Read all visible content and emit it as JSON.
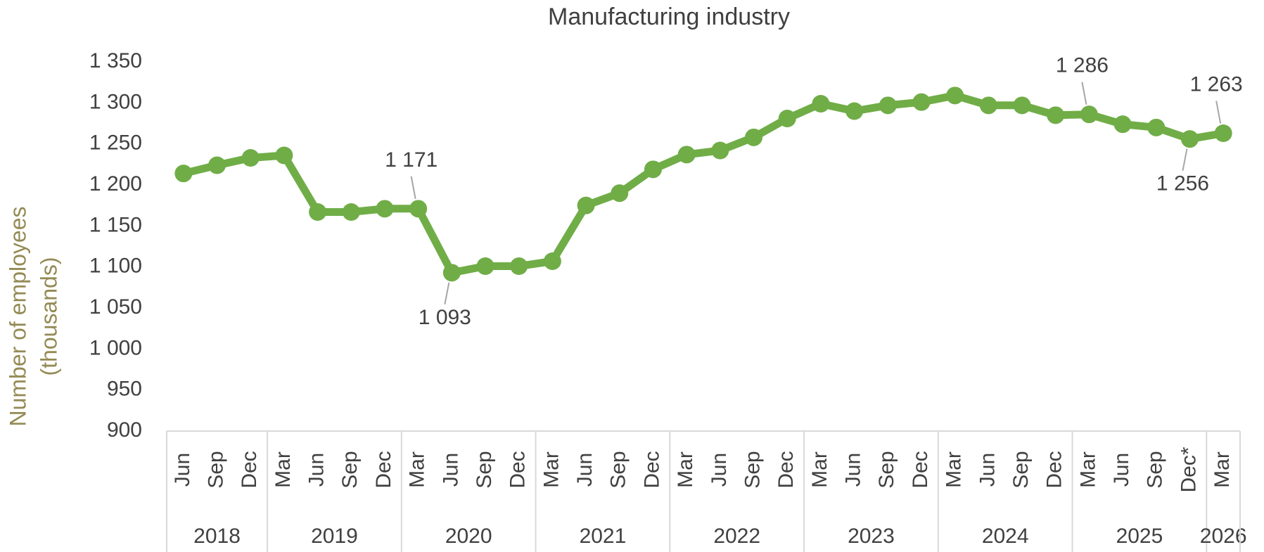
{
  "chart_data": {
    "type": "line",
    "title": "Manufacturing industry",
    "y_label": [
      "Number of employees",
      "(thousands)"
    ],
    "categories": [
      "Jun",
      "Sep",
      "Dec",
      "Mar",
      "Jun",
      "Sep",
      "Dec",
      "Mar",
      "Jun",
      "Sep",
      "Dec",
      "Mar",
      "Jun",
      "Sep",
      "Dec",
      "Mar",
      "Jun",
      "Sep",
      "Dec",
      "Mar",
      "Jun",
      "Sep",
      "Dec",
      "Mar",
      "Jun",
      "Sep",
      "Dec",
      "Mar",
      "Jun",
      "Sep",
      "Dec*",
      "Mar"
    ],
    "x_groups": [
      {
        "label": "2018",
        "size": 3
      },
      {
        "label": "2019",
        "size": 4
      },
      {
        "label": "2020",
        "size": 4
      },
      {
        "label": "2021",
        "size": 4
      },
      {
        "label": "2022",
        "size": 4
      },
      {
        "label": "2023",
        "size": 4
      },
      {
        "label": "2024",
        "size": 4
      },
      {
        "label": "2025",
        "size": 4
      },
      {
        "label": "2026",
        "size": 1
      }
    ],
    "series": [
      {
        "name": "Manufacturing industry",
        "color": "#70ad47",
        "values": [
          1214,
          1224,
          1233,
          1236,
          1167,
          1167,
          1171,
          1171,
          1093,
          1101,
          1101,
          1107,
          1175,
          1190,
          1219,
          1237,
          1242,
          1258,
          1281,
          1299,
          1290,
          1297,
          1301,
          1309,
          1297,
          1297,
          1285,
          1286,
          1274,
          1270,
          1256,
          1263
        ],
        "value_labels": [
          null,
          null,
          null,
          null,
          null,
          null,
          null,
          "1 171",
          "1 093",
          null,
          null,
          null,
          null,
          null,
          null,
          null,
          null,
          null,
          null,
          null,
          null,
          null,
          null,
          null,
          null,
          null,
          null,
          "1 286",
          null,
          null,
          "1 256",
          "1 263"
        ]
      }
    ],
    "ylim": [
      900,
      1350
    ],
    "yticks": [
      900,
      950,
      {
        "value": 1000,
        "label": "1 000"
      },
      {
        "value": 1050,
        "label": "1 050"
      },
      {
        "value": 1100,
        "label": "1 100"
      },
      {
        "value": 1150,
        "label": "1 150"
      },
      {
        "value": 1200,
        "label": "1 200"
      },
      {
        "value": 1250,
        "label": "1 250"
      },
      {
        "value": 1300,
        "label": "1 300"
      },
      {
        "value": 1350,
        "label": "1 350"
      }
    ],
    "grid": false
  }
}
